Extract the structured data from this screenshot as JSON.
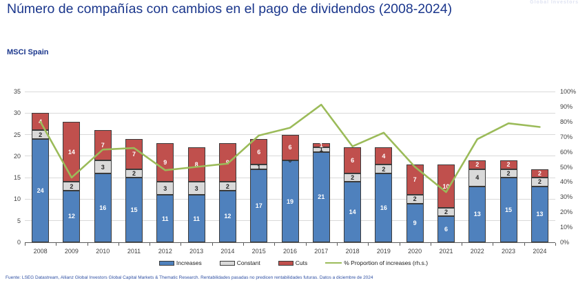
{
  "header": {
    "title": "Número de compañías con cambios en el pago de dividendos (2008-2024)",
    "subtitle": "MSCI Spain",
    "watermark": "Global Investors"
  },
  "chart_data": {
    "type": "bar",
    "stacked": true,
    "title": "Número de compañías con cambios en el pago de dividendos (2008-2024)",
    "subtitle": "MSCI Spain",
    "categories": [
      "2008",
      "2009",
      "2010",
      "2011",
      "2012",
      "2013",
      "2014",
      "2015",
      "2016",
      "2017",
      "2018",
      "2019",
      "2020",
      "2021",
      "2022",
      "2023",
      "2024"
    ],
    "series": [
      {
        "name": "Increases",
        "color": "#4F81BD",
        "label_color": "#ffffff",
        "values": [
          24,
          12,
          16,
          15,
          11,
          11,
          12,
          17,
          19,
          21,
          14,
          16,
          9,
          6,
          13,
          15,
          13
        ]
      },
      {
        "name": "Constant",
        "color": "#D9D9D9",
        "label_color": "#262626",
        "values": [
          2,
          2,
          3,
          2,
          3,
          3,
          2,
          1,
          0,
          1,
          2,
          2,
          2,
          2,
          4,
          2,
          2
        ]
      },
      {
        "name": "Cuts",
        "color": "#C0504D",
        "label_color": "#ffffff",
        "values": [
          4,
          14,
          7,
          7,
          9,
          8,
          9,
          6,
          6,
          1,
          6,
          4,
          7,
          10,
          2,
          2,
          2
        ]
      }
    ],
    "line_series": {
      "name": "% Proportion of increases (rh.s.)",
      "color": "#9BBB59",
      "axis": "right",
      "values": [
        80.0,
        42.9,
        61.5,
        62.5,
        47.8,
        50.0,
        52.2,
        70.8,
        76.0,
        91.3,
        63.6,
        72.7,
        50.0,
        33.3,
        68.4,
        78.9,
        76.5
      ]
    },
    "left_axis": {
      "min": 0,
      "max": 35,
      "step": 5,
      "ticks": [
        "0",
        "5",
        "10",
        "15",
        "20",
        "25",
        "30",
        "35"
      ]
    },
    "right_axis": {
      "min": 0,
      "max": 100,
      "step": 10,
      "ticks": [
        "0%",
        "10%",
        "20%",
        "30%",
        "40%",
        "50%",
        "60%",
        "70%",
        "80%",
        "90%",
        "100%"
      ]
    },
    "grid": true,
    "legend_position": "bottom",
    "legend": [
      "Increases",
      "Constant",
      "Cuts",
      "% Proportion of increases (rh.s.)"
    ]
  },
  "footer": {
    "source": "Fuente: LSEG Datastream, Allianz Global Investors Global Capital Markets & Thematic Research. Rentabilidades pasadas no predicen rentabilidades futuras. Datos a diciembre de 2024"
  }
}
